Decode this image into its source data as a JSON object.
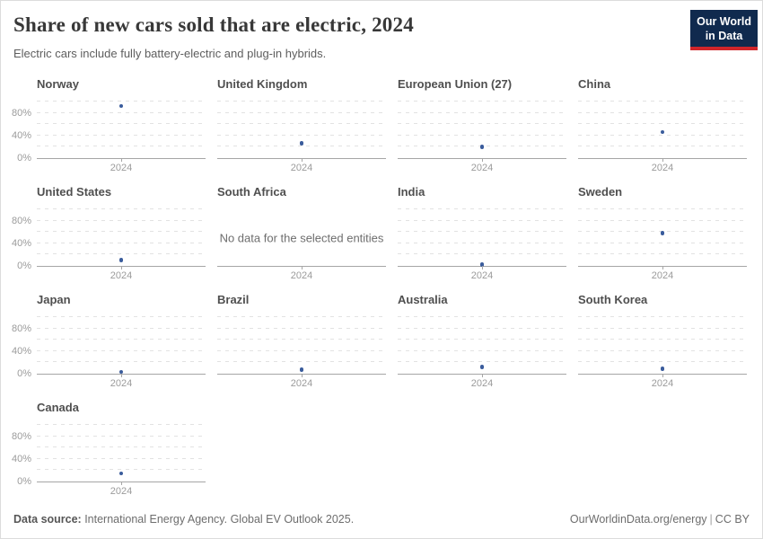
{
  "header": {
    "title": "Share of new cars sold that are electric, 2024",
    "subtitle": "Electric cars include fully battery-electric and plug-in hybrids.",
    "logo": {
      "line1": "Our World",
      "line2": "in Data",
      "bg_color": "#102a4e",
      "bar_color": "#d0252a"
    }
  },
  "chart_data": {
    "type": "scatter",
    "layout": "small-multiples",
    "columns": 4,
    "x_tick_label": "2024",
    "ylim": [
      0,
      100
    ],
    "gridline_step_pct": 20,
    "grid": "on",
    "point_color": "#3a5c9c",
    "no_data_message": "No data for the selected entities",
    "yticks": [
      {
        "value": 0,
        "label": "0%"
      },
      {
        "value": 40,
        "label": "40%"
      },
      {
        "value": 80,
        "label": "80%"
      }
    ],
    "unit": "% of new cars sold",
    "facets": [
      {
        "name": "Norway",
        "year": 2024,
        "value": 92
      },
      {
        "name": "United Kingdom",
        "year": 2024,
        "value": 26
      },
      {
        "name": "European Union (27)",
        "year": 2024,
        "value": 20
      },
      {
        "name": "China",
        "year": 2024,
        "value": 46
      },
      {
        "name": "United States",
        "year": 2024,
        "value": 10
      },
      {
        "name": "South Africa",
        "year": 2024,
        "value": null
      },
      {
        "name": "India",
        "year": 2024,
        "value": 2
      },
      {
        "name": "Sweden",
        "year": 2024,
        "value": 58
      },
      {
        "name": "Japan",
        "year": 2024,
        "value": 3
      },
      {
        "name": "Brazil",
        "year": 2024,
        "value": 7
      },
      {
        "name": "Australia",
        "year": 2024,
        "value": 12
      },
      {
        "name": "South Korea",
        "year": 2024,
        "value": 9
      },
      {
        "name": "Canada",
        "year": 2024,
        "value": 14
      }
    ]
  },
  "footer": {
    "datasource_label": "Data source:",
    "datasource_text": " International Energy Agency. Global EV Outlook 2025.",
    "link": "OurWorldinData.org/energy",
    "separator": "|",
    "license": "CC BY"
  }
}
